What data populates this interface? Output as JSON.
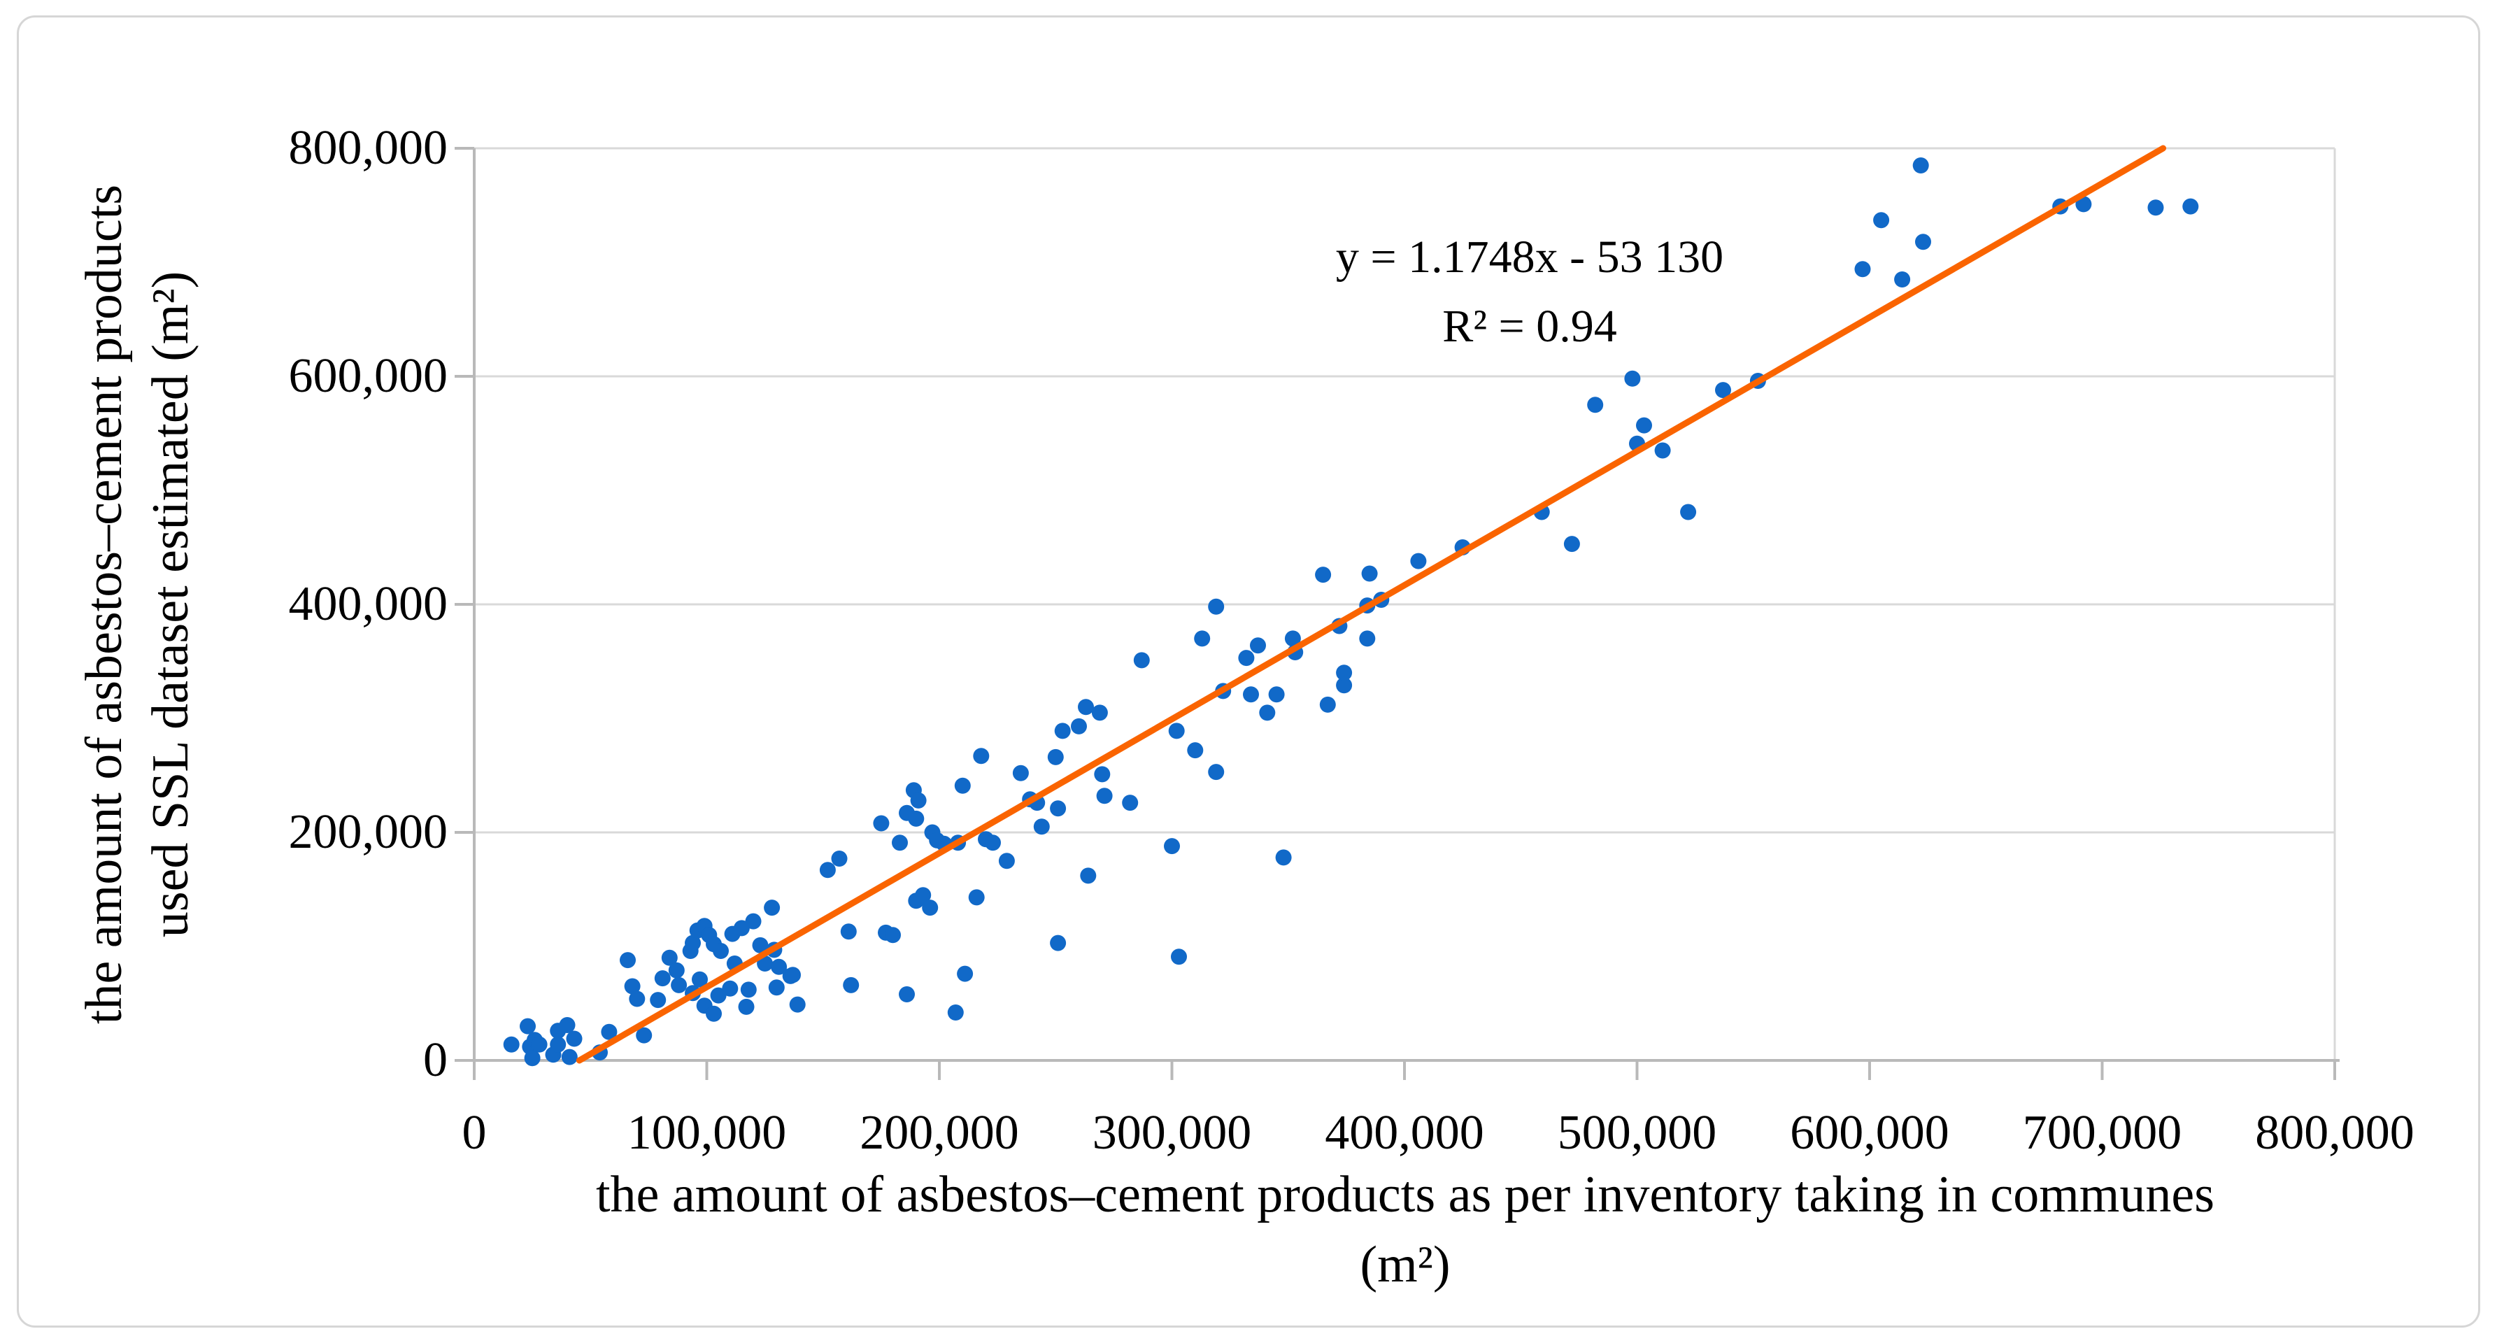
{
  "figure": {
    "background": "#ffffff",
    "border_color": "#d6d6d6"
  },
  "chart_data": {
    "type": "scatter",
    "title": "",
    "xlabel_line1": "the amount of asbestos–cement products as per inventory taking in communes",
    "xlabel_line2": "(m²)",
    "ylabel_line1": "the amount of asbestos–cement products",
    "ylabel_line2": "used SSL dataset estimated (m²)",
    "annotation": {
      "line1": "y = 1.1748x - 53 130",
      "line2": "R² = 0.94"
    },
    "xlim": [
      0,
      800000
    ],
    "ylim": [
      0,
      800000
    ],
    "x_ticks": [
      0,
      100000,
      200000,
      300000,
      400000,
      500000,
      600000,
      700000,
      800000
    ],
    "y_ticks": [
      0,
      200000,
      400000,
      600000,
      800000
    ],
    "grid": "horizontal gridlines only",
    "legend": "none",
    "colors": {
      "point": "#1169c8",
      "trendline": "#fa6400",
      "gridline": "#d9d9d9",
      "axis": "#b9b9b9",
      "text": "#000000"
    },
    "trendline": {
      "slope": 1.1748,
      "intercept": -53130,
      "x_start": 45222,
      "x_end": 726192
    },
    "points": [
      [
        16000,
        14000
      ],
      [
        23000,
        30000
      ],
      [
        24000,
        12000
      ],
      [
        25000,
        2000
      ],
      [
        26000,
        18000
      ],
      [
        28000,
        14000
      ],
      [
        34000,
        5000
      ],
      [
        36000,
        14000
      ],
      [
        36000,
        26000
      ],
      [
        40000,
        31000
      ],
      [
        41000,
        3000
      ],
      [
        43000,
        19000
      ],
      [
        54000,
        7000
      ],
      [
        58000,
        25000
      ],
      [
        66000,
        88000
      ],
      [
        68000,
        65000
      ],
      [
        70000,
        54000
      ],
      [
        73000,
        22000
      ],
      [
        79000,
        53000
      ],
      [
        81000,
        72000
      ],
      [
        84000,
        90000
      ],
      [
        87000,
        79000
      ],
      [
        88000,
        66000
      ],
      [
        93000,
        96000
      ],
      [
        94000,
        103000
      ],
      [
        96000,
        114000
      ],
      [
        99000,
        118000
      ],
      [
        101000,
        110000
      ],
      [
        103000,
        102000
      ],
      [
        106000,
        96000
      ],
      [
        94000,
        59000
      ],
      [
        97000,
        71000
      ],
      [
        99000,
        48000
      ],
      [
        103000,
        41000
      ],
      [
        105000,
        57000
      ],
      [
        110000,
        63000
      ],
      [
        112000,
        85000
      ],
      [
        117000,
        47000
      ],
      [
        118000,
        62000
      ],
      [
        111000,
        111000
      ],
      [
        115000,
        116000
      ],
      [
        120000,
        122000
      ],
      [
        128000,
        134000
      ],
      [
        123000,
        101000
      ],
      [
        125000,
        85000
      ],
      [
        129000,
        97000
      ],
      [
        130000,
        64000
      ],
      [
        131000,
        82000
      ],
      [
        136000,
        74000
      ],
      [
        137000,
        75000
      ],
      [
        139000,
        49000
      ],
      [
        152000,
        167000
      ],
      [
        157000,
        177000
      ],
      [
        161000,
        113000
      ],
      [
        162000,
        66000
      ],
      [
        175000,
        208000
      ],
      [
        177000,
        112000
      ],
      [
        180000,
        110000
      ],
      [
        183000,
        191000
      ],
      [
        186000,
        58000
      ],
      [
        186000,
        217000
      ],
      [
        189000,
        237000
      ],
      [
        190000,
        140000
      ],
      [
        190000,
        212000
      ],
      [
        191000,
        228000
      ],
      [
        193000,
        145000
      ],
      [
        196000,
        134000
      ],
      [
        197000,
        200000
      ],
      [
        199000,
        193000
      ],
      [
        202000,
        190000
      ],
      [
        207000,
        42000
      ],
      [
        208000,
        191000
      ],
      [
        211000,
        76000
      ],
      [
        210000,
        241000
      ],
      [
        216000,
        143000
      ],
      [
        218000,
        267000
      ],
      [
        220000,
        194000
      ],
      [
        223000,
        191000
      ],
      [
        229000,
        175000
      ],
      [
        235000,
        252000
      ],
      [
        239000,
        229000
      ],
      [
        242000,
        226000
      ],
      [
        244000,
        205000
      ],
      [
        250000,
        266000
      ],
      [
        251000,
        103000
      ],
      [
        251000,
        221000
      ],
      [
        253000,
        289000
      ],
      [
        260000,
        293000
      ],
      [
        263000,
        310000
      ],
      [
        264000,
        162000
      ],
      [
        269000,
        305000
      ],
      [
        270000,
        251000
      ],
      [
        271000,
        232000
      ],
      [
        282000,
        226000
      ],
      [
        287000,
        351000
      ],
      [
        300000,
        188000
      ],
      [
        302000,
        289000
      ],
      [
        303000,
        91000
      ],
      [
        310000,
        272000
      ],
      [
        313000,
        370000
      ],
      [
        319000,
        253000
      ],
      [
        319000,
        398000
      ],
      [
        322000,
        324000
      ],
      [
        332000,
        353000
      ],
      [
        334000,
        321000
      ],
      [
        337000,
        364000
      ],
      [
        341000,
        305000
      ],
      [
        345000,
        321000
      ],
      [
        348000,
        178000
      ],
      [
        352000,
        370000
      ],
      [
        353000,
        358000
      ],
      [
        365000,
        426000
      ],
      [
        367000,
        312000
      ],
      [
        372000,
        381000
      ],
      [
        374000,
        329000
      ],
      [
        374000,
        340000
      ],
      [
        384000,
        370000
      ],
      [
        384000,
        399000
      ],
      [
        385000,
        427000
      ],
      [
        390000,
        404000
      ],
      [
        406000,
        438000
      ],
      [
        425000,
        450000
      ],
      [
        459000,
        481000
      ],
      [
        472000,
        453000
      ],
      [
        482000,
        575000
      ],
      [
        498000,
        598000
      ],
      [
        500000,
        541000
      ],
      [
        503000,
        557000
      ],
      [
        511000,
        535000
      ],
      [
        522000,
        481000
      ],
      [
        537000,
        588000
      ],
      [
        552000,
        596000
      ],
      [
        597000,
        694000
      ],
      [
        605000,
        737000
      ],
      [
        614000,
        685000
      ],
      [
        622000,
        785000
      ],
      [
        623000,
        718000
      ],
      [
        682000,
        749000
      ],
      [
        692000,
        751000
      ],
      [
        723000,
        748000
      ],
      [
        738000,
        749000
      ]
    ]
  }
}
